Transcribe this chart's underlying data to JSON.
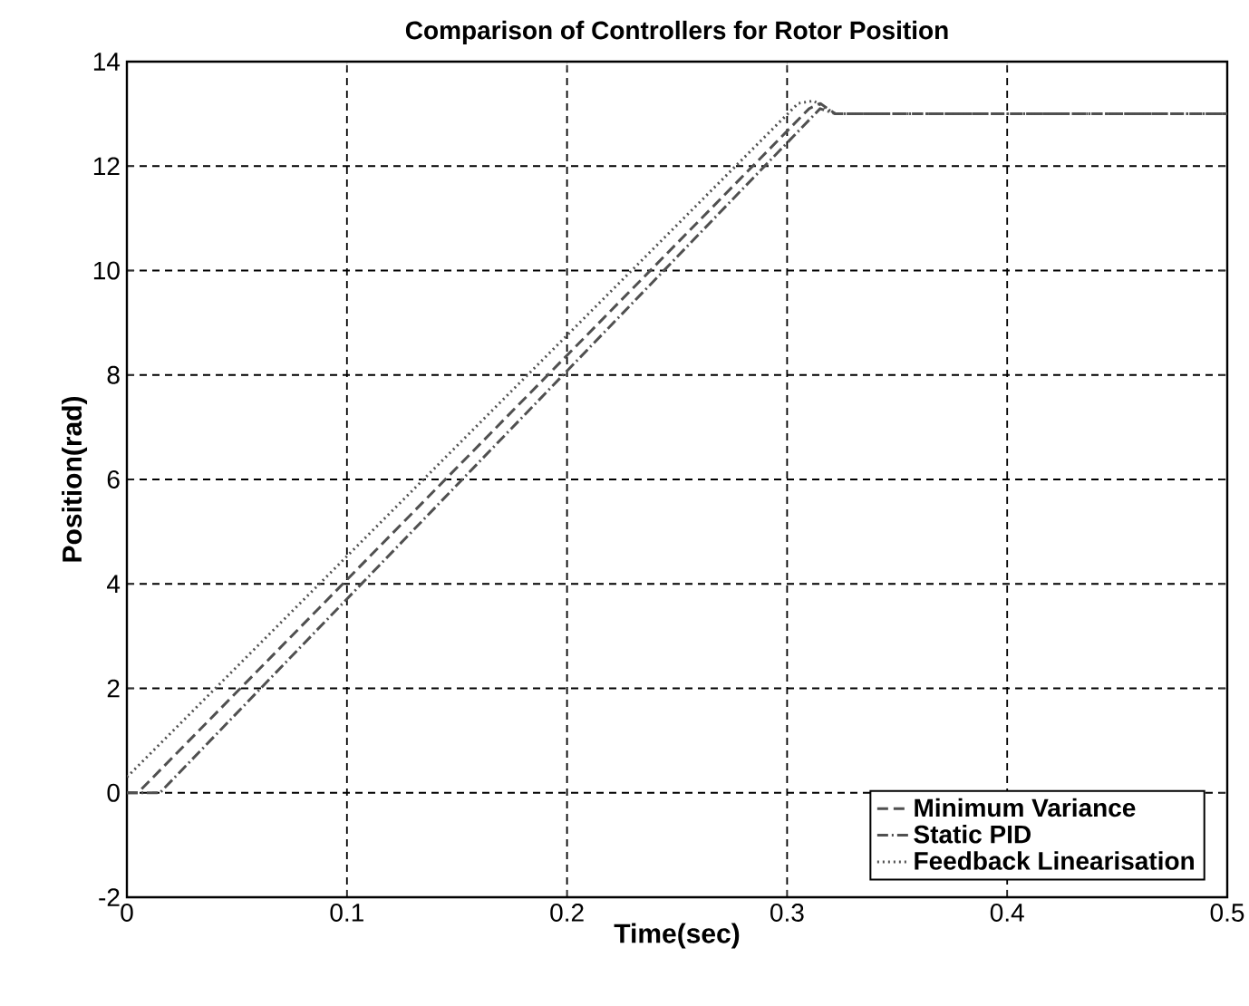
{
  "chart_data": {
    "type": "line",
    "title": "Comparison of Controllers for Rotor Position",
    "xlabel": "Time(sec)",
    "ylabel": "Position(rad)",
    "xlim": [
      0,
      0.5
    ],
    "xticks": [
      0,
      0.1,
      0.2,
      0.3,
      0.4,
      0.5
    ],
    "ylim": [
      -2,
      14
    ],
    "yticks": [
      -2,
      0,
      2,
      4,
      6,
      8,
      10,
      12,
      14
    ],
    "grid": true,
    "legend": "bottom right",
    "series": [
      {
        "name": "Minimum Variance",
        "color": "#505050",
        "line_style": "dashed",
        "x": [
          0,
          0.005,
          0.31,
          0.315,
          0.322,
          0.5
        ],
        "values": [
          0,
          0,
          13.1,
          13.2,
          13,
          13
        ]
      },
      {
        "name": "Static PID",
        "color": "#505050",
        "line_style": "dashdot",
        "x": [
          0,
          0.015,
          0.315,
          0.322,
          0.5
        ],
        "values": [
          0,
          0,
          13.1,
          13,
          13
        ]
      },
      {
        "name": "Feedback Linearisation",
        "color": "#505050",
        "line_style": "dotted",
        "x": [
          0,
          0.305,
          0.312,
          0.322,
          0.5
        ],
        "values": [
          0.3,
          13.2,
          13.25,
          13,
          13
        ]
      }
    ]
  }
}
